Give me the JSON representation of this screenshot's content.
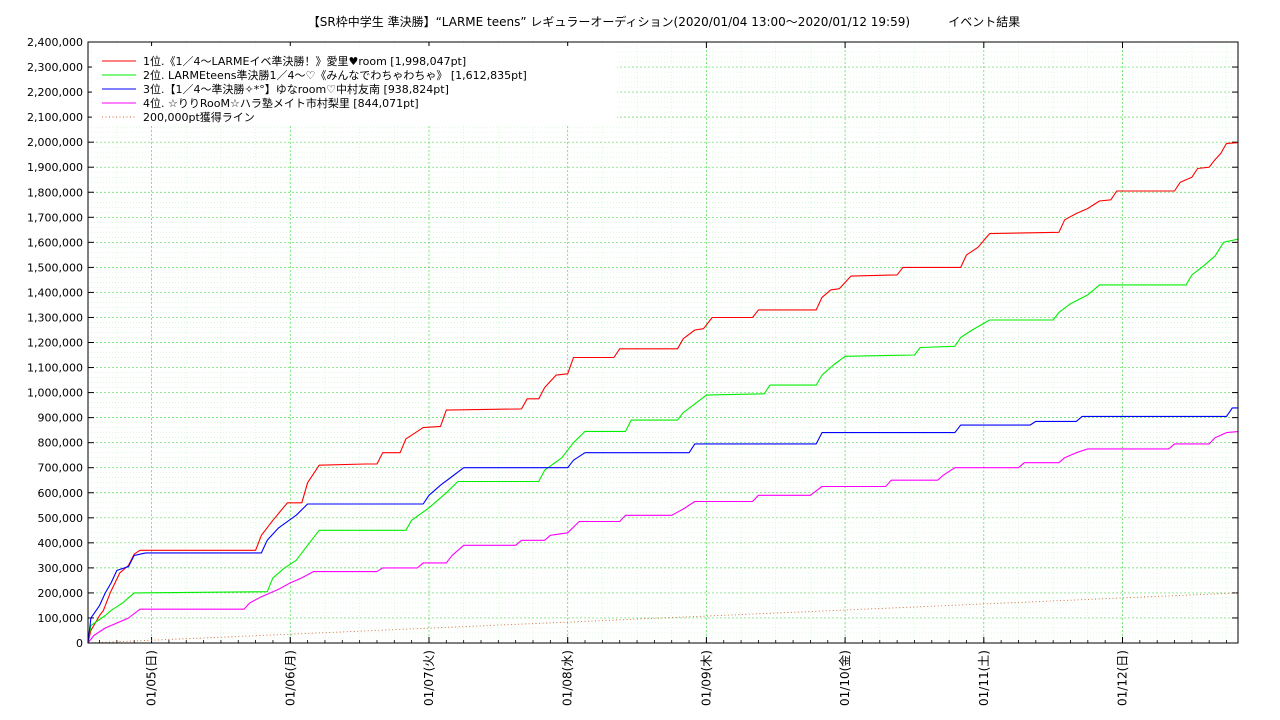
{
  "chart_data": {
    "type": "line",
    "title": "【SR枠中学生 準決勝】“LARME teens” レギュラーオーディション(2020/01/04 13:00～2020/01/12 19:59)          イベント結果",
    "xlabel": "",
    "ylabel": "",
    "x_range": [
      "2020-01-04 13:00",
      "2020-01-12 19:59"
    ],
    "ylim": [
      0,
      2400000
    ],
    "y_ticks": [
      0,
      100000,
      200000,
      300000,
      400000,
      500000,
      600000,
      700000,
      800000,
      900000,
      1000000,
      1100000,
      1200000,
      1300000,
      1400000,
      1500000,
      1600000,
      1700000,
      1800000,
      1900000,
      2000000,
      2100000,
      2200000,
      2300000,
      2400000
    ],
    "y_tick_labels": [
      "0",
      "100,000",
      "200,000",
      "300,000",
      "400,000",
      "500,000",
      "600,000",
      "700,000",
      "800,000",
      "900,000",
      "1,000,000",
      "1,100,000",
      "1,200,000",
      "1,300,000",
      "1,400,000",
      "1,500,000",
      "1,600,000",
      "1,700,000",
      "1,800,000",
      "1,900,000",
      "2,000,000",
      "2,100,000",
      "2,200,000",
      "2,300,000",
      "2,400,000"
    ],
    "x_ticks": [
      {
        "t": "2020-01-05 00:00",
        "label": "01/05(日)"
      },
      {
        "t": "2020-01-06 00:00",
        "label": "01/06(月)"
      },
      {
        "t": "2020-01-07 00:00",
        "label": "01/07(火)"
      },
      {
        "t": "2020-01-08 00:00",
        "label": "01/08(水)"
      },
      {
        "t": "2020-01-09 00:00",
        "label": "01/09(木)"
      },
      {
        "t": "2020-01-10 00:00",
        "label": "01/10(金)"
      },
      {
        "t": "2020-01-11 00:00",
        "label": "01/11(土)"
      },
      {
        "t": "2020-01-12 00:00",
        "label": "01/12(日)"
      }
    ],
    "grid": true,
    "legend_position": "top-left",
    "series": [
      {
        "name": "1位.《1／4～LARMEイベ準決勝！》愛里♥room [1,998,047pt]",
        "color": "#ff0000",
        "points": [
          [
            "2020-01-04 13:00",
            0
          ],
          [
            "2020-01-04 13:30",
            50000
          ],
          [
            "2020-01-04 15:00",
            110000
          ],
          [
            "2020-01-04 15:40",
            130000
          ],
          [
            "2020-01-04 16:50",
            200000
          ],
          [
            "2020-01-04 18:30",
            280000
          ],
          [
            "2020-01-04 20:00",
            310000
          ],
          [
            "2020-01-04 21:00",
            355000
          ],
          [
            "2020-01-04 22:00",
            370000
          ],
          [
            "2020-01-05 18:00",
            370000
          ],
          [
            "2020-01-05 19:00",
            430000
          ],
          [
            "2020-01-05 21:00",
            490000
          ],
          [
            "2020-01-05 23:30",
            560000
          ],
          [
            "2020-01-06 02:00",
            560000
          ],
          [
            "2020-01-06 03:00",
            640000
          ],
          [
            "2020-01-06 05:00",
            710000
          ],
          [
            "2020-01-06 13:00",
            715000
          ],
          [
            "2020-01-06 15:00",
            715000
          ],
          [
            "2020-01-06 16:00",
            760000
          ],
          [
            "2020-01-06 19:00",
            760000
          ],
          [
            "2020-01-06 20:00",
            815000
          ],
          [
            "2020-01-06 23:00",
            860000
          ],
          [
            "2020-01-07 02:00",
            865000
          ],
          [
            "2020-01-07 03:00",
            930000
          ],
          [
            "2020-01-07 16:00",
            935000
          ],
          [
            "2020-01-07 17:00",
            975000
          ],
          [
            "2020-01-07 19:00",
            975000
          ],
          [
            "2020-01-07 20:00",
            1020000
          ],
          [
            "2020-01-07 22:00",
            1070000
          ],
          [
            "2020-01-08 00:00",
            1075000
          ],
          [
            "2020-01-08 01:00",
            1140000
          ],
          [
            "2020-01-08 08:00",
            1140000
          ],
          [
            "2020-01-08 09:00",
            1175000
          ],
          [
            "2020-01-08 19:00",
            1175000
          ],
          [
            "2020-01-08 20:00",
            1215000
          ],
          [
            "2020-01-08 22:00",
            1250000
          ],
          [
            "2020-01-08 23:30",
            1255000
          ],
          [
            "2020-01-09 01:00",
            1300000
          ],
          [
            "2020-01-09 08:00",
            1300000
          ],
          [
            "2020-01-09 09:00",
            1330000
          ],
          [
            "2020-01-09 19:00",
            1330000
          ],
          [
            "2020-01-09 20:00",
            1380000
          ],
          [
            "2020-01-09 21:30",
            1410000
          ],
          [
            "2020-01-09 23:00",
            1415000
          ],
          [
            "2020-01-10 01:00",
            1465000
          ],
          [
            "2020-01-10 09:00",
            1470000
          ],
          [
            "2020-01-10 10:00",
            1500000
          ],
          [
            "2020-01-10 20:00",
            1500000
          ],
          [
            "2020-01-10 21:00",
            1550000
          ],
          [
            "2020-01-10 23:00",
            1580000
          ],
          [
            "2020-01-11 01:00",
            1635000
          ],
          [
            "2020-01-11 13:00",
            1640000
          ],
          [
            "2020-01-11 14:00",
            1690000
          ],
          [
            "2020-01-11 16:00",
            1715000
          ],
          [
            "2020-01-11 18:00",
            1735000
          ],
          [
            "2020-01-11 20:00",
            1765000
          ],
          [
            "2020-01-11 22:00",
            1770000
          ],
          [
            "2020-01-11 23:00",
            1805000
          ],
          [
            "2020-01-12 09:00",
            1805000
          ],
          [
            "2020-01-12 10:00",
            1840000
          ],
          [
            "2020-01-12 12:00",
            1860000
          ],
          [
            "2020-01-12 13:00",
            1895000
          ],
          [
            "2020-01-12 15:00",
            1900000
          ],
          [
            "2020-01-12 16:00",
            1930000
          ],
          [
            "2020-01-12 17:00",
            1955000
          ],
          [
            "2020-01-12 18:00",
            1995000
          ],
          [
            "2020-01-12 19:59",
            1998047
          ]
        ]
      },
      {
        "name": "2位. LARMEteens準決勝1／4～♡《みんなでわちゃわちゃ》 [1,612,835pt]",
        "color": "#00ee00",
        "points": [
          [
            "2020-01-04 13:00",
            0
          ],
          [
            "2020-01-04 13:30",
            70000
          ],
          [
            "2020-01-04 16:00",
            110000
          ],
          [
            "2020-01-04 17:00",
            130000
          ],
          [
            "2020-01-04 19:00",
            160000
          ],
          [
            "2020-01-04 21:00",
            200000
          ],
          [
            "2020-01-05 20:00",
            205000
          ],
          [
            "2020-01-05 21:00",
            260000
          ],
          [
            "2020-01-05 23:00",
            300000
          ],
          [
            "2020-01-06 01:00",
            330000
          ],
          [
            "2020-01-06 03:00",
            390000
          ],
          [
            "2020-01-06 05:00",
            450000
          ],
          [
            "2020-01-06 20:00",
            450000
          ],
          [
            "2020-01-06 21:00",
            490000
          ],
          [
            "2020-01-07 00:00",
            540000
          ],
          [
            "2020-01-07 03:00",
            600000
          ],
          [
            "2020-01-07 05:00",
            645000
          ],
          [
            "2020-01-07 19:00",
            645000
          ],
          [
            "2020-01-07 20:00",
            690000
          ],
          [
            "2020-01-07 23:00",
            740000
          ],
          [
            "2020-01-08 01:00",
            800000
          ],
          [
            "2020-01-08 03:00",
            845000
          ],
          [
            "2020-01-08 10:00",
            845000
          ],
          [
            "2020-01-08 11:00",
            890000
          ],
          [
            "2020-01-08 19:00",
            890000
          ],
          [
            "2020-01-08 20:00",
            920000
          ],
          [
            "2020-01-08 22:00",
            955000
          ],
          [
            "2020-01-09 00:00",
            990000
          ],
          [
            "2020-01-09 10:00",
            995000
          ],
          [
            "2020-01-09 11:00",
            1030000
          ],
          [
            "2020-01-09 19:00",
            1030000
          ],
          [
            "2020-01-09 20:00",
            1070000
          ],
          [
            "2020-01-09 22:00",
            1110000
          ],
          [
            "2020-01-10 00:00",
            1145000
          ],
          [
            "2020-01-10 12:00",
            1150000
          ],
          [
            "2020-01-10 13:00",
            1180000
          ],
          [
            "2020-01-10 19:00",
            1185000
          ],
          [
            "2020-01-10 20:00",
            1220000
          ],
          [
            "2020-01-10 22:00",
            1250000
          ],
          [
            "2020-01-11 01:00",
            1290000
          ],
          [
            "2020-01-11 12:00",
            1290000
          ],
          [
            "2020-01-11 13:00",
            1320000
          ],
          [
            "2020-01-11 15:00",
            1355000
          ],
          [
            "2020-01-11 18:00",
            1390000
          ],
          [
            "2020-01-11 20:00",
            1430000
          ],
          [
            "2020-01-12 11:00",
            1430000
          ],
          [
            "2020-01-12 12:00",
            1470000
          ],
          [
            "2020-01-12 14:00",
            1505000
          ],
          [
            "2020-01-12 16:00",
            1545000
          ],
          [
            "2020-01-12 17:30",
            1600000
          ],
          [
            "2020-01-12 19:59",
            1612835
          ]
        ]
      },
      {
        "name": "3位.【1／4～準決勝✧*°】ゆなroom♡中村友南 [938,824pt]",
        "color": "#0000ff",
        "points": [
          [
            "2020-01-04 13:00",
            0
          ],
          [
            "2020-01-04 13:30",
            100000
          ],
          [
            "2020-01-04 15:00",
            150000
          ],
          [
            "2020-01-04 16:00",
            200000
          ],
          [
            "2020-01-04 17:00",
            240000
          ],
          [
            "2020-01-04 18:00",
            290000
          ],
          [
            "2020-01-04 20:00",
            305000
          ],
          [
            "2020-01-04 21:00",
            350000
          ],
          [
            "2020-01-04 23:00",
            360000
          ],
          [
            "2020-01-05 19:00",
            360000
          ],
          [
            "2020-01-05 20:00",
            410000
          ],
          [
            "2020-01-05 22:00",
            460000
          ],
          [
            "2020-01-06 01:00",
            510000
          ],
          [
            "2020-01-06 03:00",
            555000
          ],
          [
            "2020-01-06 23:00",
            555000
          ],
          [
            "2020-01-07 00:00",
            590000
          ],
          [
            "2020-01-07 02:00",
            630000
          ],
          [
            "2020-01-07 04:00",
            665000
          ],
          [
            "2020-01-07 06:00",
            700000
          ],
          [
            "2020-01-08 00:00",
            700000
          ],
          [
            "2020-01-08 01:00",
            730000
          ],
          [
            "2020-01-08 03:00",
            760000
          ],
          [
            "2020-01-08 21:00",
            760000
          ],
          [
            "2020-01-08 22:00",
            795000
          ],
          [
            "2020-01-09 19:00",
            795000
          ],
          [
            "2020-01-09 20:00",
            840000
          ],
          [
            "2020-01-10 19:00",
            840000
          ],
          [
            "2020-01-10 20:00",
            870000
          ],
          [
            "2020-01-11 08:00",
            870000
          ],
          [
            "2020-01-11 09:00",
            885000
          ],
          [
            "2020-01-11 16:00",
            885000
          ],
          [
            "2020-01-11 17:00",
            905000
          ],
          [
            "2020-01-12 18:00",
            905000
          ],
          [
            "2020-01-12 19:00",
            938824
          ],
          [
            "2020-01-12 19:59",
            938824
          ]
        ]
      },
      {
        "name": "4位. ☆りりRooM☆ハラ塾メイト市村梨里 [844,071pt]",
        "color": "#ff00ff",
        "points": [
          [
            "2020-01-04 13:00",
            0
          ],
          [
            "2020-01-04 14:00",
            30000
          ],
          [
            "2020-01-04 16:00",
            60000
          ],
          [
            "2020-01-04 18:00",
            80000
          ],
          [
            "2020-01-04 20:00",
            100000
          ],
          [
            "2020-01-04 22:00",
            135000
          ],
          [
            "2020-01-05 16:00",
            135000
          ],
          [
            "2020-01-05 17:00",
            160000
          ],
          [
            "2020-01-05 19:00",
            185000
          ],
          [
            "2020-01-05 22:00",
            215000
          ],
          [
            "2020-01-06 00:00",
            240000
          ],
          [
            "2020-01-06 02:00",
            260000
          ],
          [
            "2020-01-06 04:00",
            285000
          ],
          [
            "2020-01-06 15:00",
            285000
          ],
          [
            "2020-01-06 16:00",
            300000
          ],
          [
            "2020-01-06 22:00",
            300000
          ],
          [
            "2020-01-06 23:00",
            320000
          ],
          [
            "2020-01-07 03:00",
            320000
          ],
          [
            "2020-01-07 04:00",
            350000
          ],
          [
            "2020-01-07 06:00",
            390000
          ],
          [
            "2020-01-07 15:00",
            390000
          ],
          [
            "2020-01-07 16:00",
            410000
          ],
          [
            "2020-01-07 20:00",
            410000
          ],
          [
            "2020-01-07 21:00",
            430000
          ],
          [
            "2020-01-08 00:00",
            440000
          ],
          [
            "2020-01-08 02:00",
            485000
          ],
          [
            "2020-01-08 09:00",
            485000
          ],
          [
            "2020-01-08 10:00",
            510000
          ],
          [
            "2020-01-08 18:00",
            510000
          ],
          [
            "2020-01-08 20:00",
            535000
          ],
          [
            "2020-01-08 22:00",
            565000
          ],
          [
            "2020-01-09 08:00",
            565000
          ],
          [
            "2020-01-09 09:00",
            590000
          ],
          [
            "2020-01-09 18:00",
            590000
          ],
          [
            "2020-01-09 20:00",
            625000
          ],
          [
            "2020-01-10 07:00",
            625000
          ],
          [
            "2020-01-10 08:00",
            650000
          ],
          [
            "2020-01-10 16:00",
            650000
          ],
          [
            "2020-01-10 17:00",
            670000
          ],
          [
            "2020-01-10 19:00",
            700000
          ],
          [
            "2020-01-11 06:00",
            700000
          ],
          [
            "2020-01-11 07:00",
            720000
          ],
          [
            "2020-01-11 13:00",
            720000
          ],
          [
            "2020-01-11 14:00",
            740000
          ],
          [
            "2020-01-11 16:00",
            760000
          ],
          [
            "2020-01-11 18:00",
            775000
          ],
          [
            "2020-01-12 08:00",
            775000
          ],
          [
            "2020-01-12 09:00",
            795000
          ],
          [
            "2020-01-12 15:00",
            795000
          ],
          [
            "2020-01-12 16:00",
            820000
          ],
          [
            "2020-01-12 18:00",
            840000
          ],
          [
            "2020-01-12 19:59",
            844071
          ]
        ]
      },
      {
        "name": "200,000pt獲得ライン",
        "color": "#cc6633",
        "dashed": true,
        "points": [
          [
            "2020-01-04 13:00",
            0
          ],
          [
            "2020-01-12 19:59",
            200000
          ]
        ]
      }
    ]
  }
}
